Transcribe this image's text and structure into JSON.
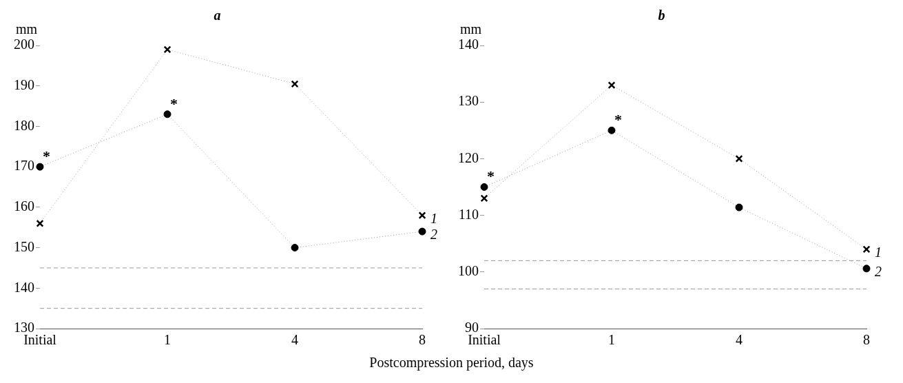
{
  "chart_data": [
    {
      "type": "line",
      "title": "a",
      "ylabel": "mm",
      "xlabel": "Postcompression period, days",
      "categories": [
        "Initial",
        "1",
        "4",
        "8"
      ],
      "ylim": [
        130,
        200
      ],
      "yticks": [
        130,
        140,
        150,
        160,
        170,
        180,
        190,
        200
      ],
      "grid": false,
      "legend": false,
      "series": [
        {
          "name": "1",
          "color": "#000000",
          "marker": "cross",
          "line_style": "dotted",
          "values": [
            156,
            199,
            190.5,
            158
          ]
        },
        {
          "name": "2",
          "color": "#000000",
          "marker": "circle",
          "line_style": "dotted",
          "values": [
            170,
            183,
            150,
            154
          ]
        }
      ],
      "ref_lines": [
        {
          "axis": "y",
          "value": 145,
          "color": "#999999",
          "line_style": "dashed"
        },
        {
          "axis": "y",
          "value": 135,
          "color": "#999999",
          "line_style": "dashed"
        }
      ],
      "annotations": [
        {
          "text": "*",
          "x": "Initial",
          "y": 170
        },
        {
          "text": "*",
          "x": "1",
          "y": 183
        }
      ]
    },
    {
      "type": "line",
      "title": "b",
      "ylabel": "mm",
      "categories": [
        "Initial",
        "1",
        "4",
        "8"
      ],
      "ylim": [
        90,
        140
      ],
      "yticks": [
        90,
        100,
        110,
        120,
        130,
        140
      ],
      "grid": false,
      "legend": false,
      "series": [
        {
          "name": "1",
          "color": "#000000",
          "marker": "cross",
          "line_style": "dotted",
          "values": [
            113,
            133,
            120,
            104
          ]
        },
        {
          "name": "2",
          "color": "#000000",
          "marker": "circle",
          "line_style": "dotted",
          "values": [
            115,
            125,
            111.4,
            100.6
          ]
        }
      ],
      "ref_lines": [
        {
          "axis": "y",
          "value": 102,
          "color": "#999999",
          "line_style": "dashed"
        },
        {
          "axis": "y",
          "value": 97,
          "color": "#999999",
          "line_style": "dashed"
        }
      ],
      "annotations": [
        {
          "text": "*",
          "x": "Initial",
          "y": 115
        },
        {
          "text": "*",
          "x": "1",
          "y": 125
        }
      ]
    }
  ]
}
